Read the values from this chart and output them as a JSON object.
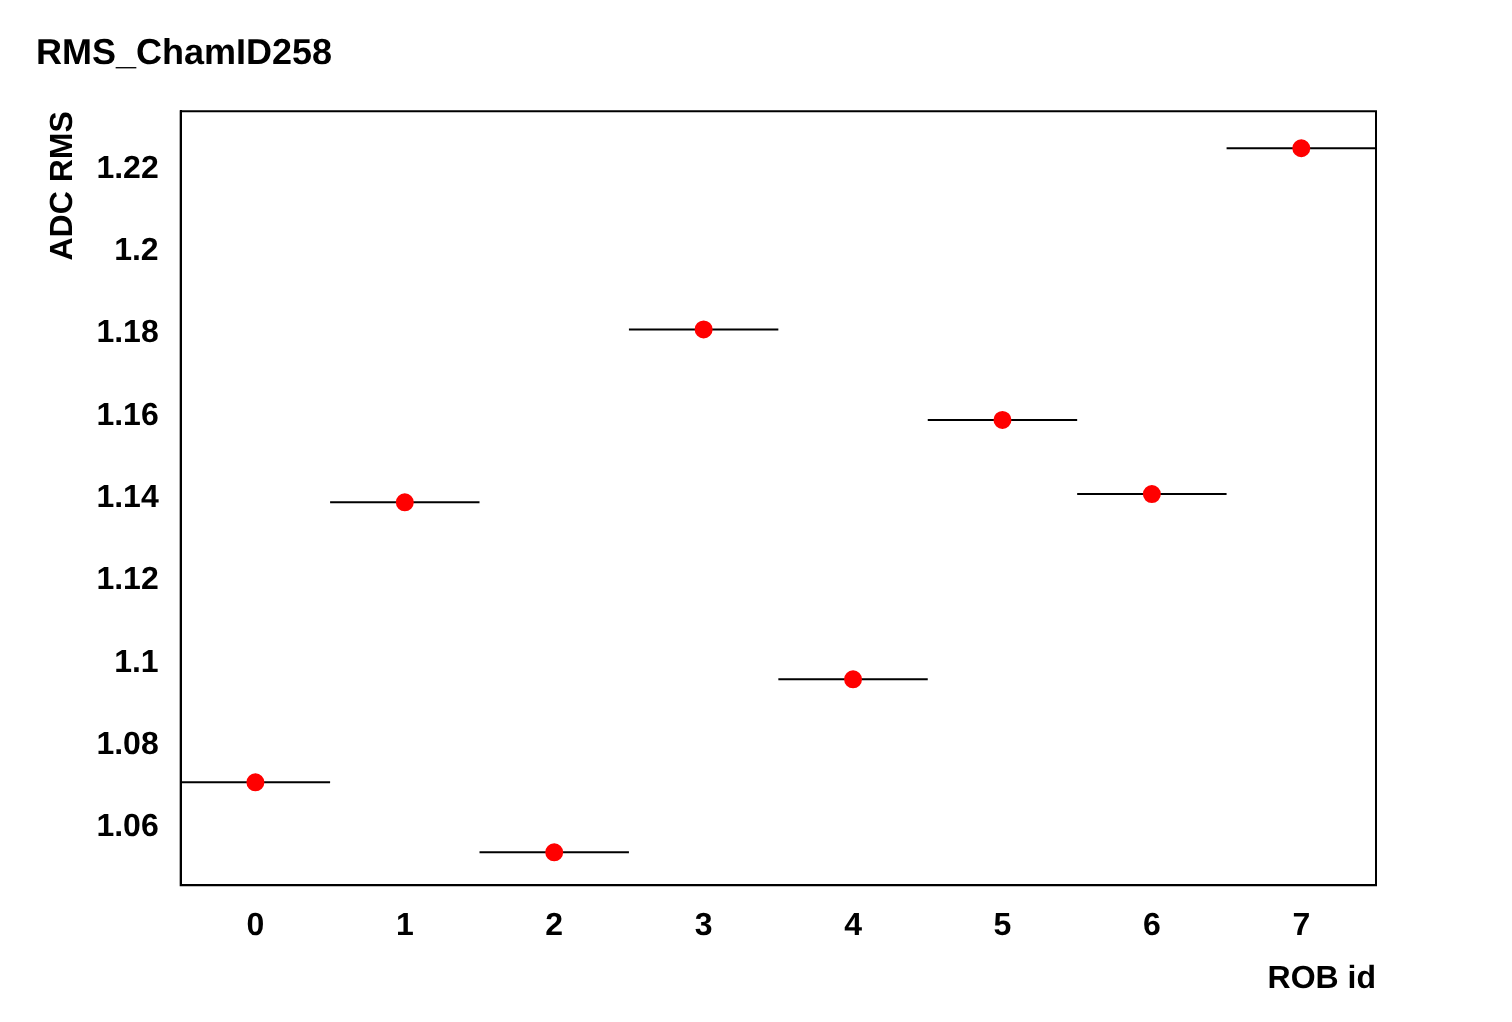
{
  "chart_data": {
    "type": "scatter",
    "title": "RMS_ChamID258",
    "xlabel": "ROB id",
    "ylabel": "ADC RMS",
    "x": [
      0,
      1,
      2,
      3,
      4,
      5,
      6,
      7
    ],
    "values": [
      1.071,
      1.139,
      1.054,
      1.181,
      1.096,
      1.159,
      1.141,
      1.225
    ],
    "xerrors": [
      0.5,
      0.5,
      0.5,
      0.5,
      0.5,
      0.5,
      0.5,
      0.5
    ],
    "color": "#ff0000",
    "marker": "circle",
    "xlim": [
      -0.5,
      7.5
    ],
    "xticks": [
      0,
      1,
      2,
      3,
      4,
      5,
      6,
      7
    ],
    "ylim": [
      1.046,
      1.234
    ],
    "yticks": [
      1.06,
      1.08,
      1.1,
      1.12,
      1.14,
      1.16,
      1.18,
      1.2,
      1.22
    ]
  }
}
